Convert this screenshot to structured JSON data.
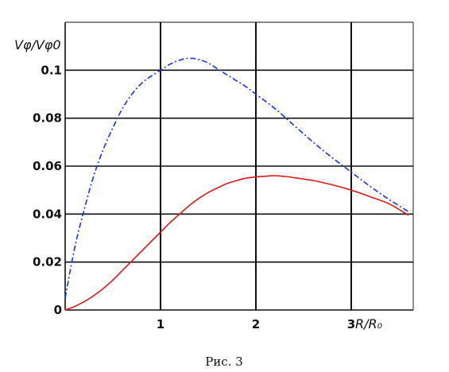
{
  "chart_data": {
    "type": "line",
    "xlabel": "R/R₀",
    "ylabel": "Vφ/Vφ0",
    "xlim": [
      0,
      3.65
    ],
    "ylim": [
      0,
      0.12
    ],
    "x_ticks": [
      {
        "value": 0,
        "label": ""
      },
      {
        "value": 1,
        "label": "1"
      },
      {
        "value": 2,
        "label": "2"
      },
      {
        "value": 3,
        "label": "3"
      }
    ],
    "y_ticks": [
      {
        "value": 0,
        "label": "0"
      },
      {
        "value": 0.02,
        "label": "0.02"
      },
      {
        "value": 0.04,
        "label": "0.04"
      },
      {
        "value": 0.06,
        "label": "0.06"
      },
      {
        "value": 0.08,
        "label": "0.08"
      },
      {
        "value": 0.1,
        "label": "0.1"
      }
    ],
    "grid": true,
    "legend": "none",
    "series": [
      {
        "color": "#1a35e0",
        "style": "dash-dot",
        "x": [
          0,
          0.1,
          0.2,
          0.3,
          0.4,
          0.5,
          0.6,
          0.7,
          0.8,
          0.9,
          1.0,
          1.1,
          1.2,
          1.3,
          1.4,
          1.5,
          1.6,
          1.7,
          1.8,
          1.9,
          2.0,
          2.2,
          2.4,
          2.6,
          2.8,
          3.0,
          3.2,
          3.4,
          3.6
        ],
        "y": [
          0.005,
          0.026,
          0.042,
          0.056,
          0.067,
          0.076,
          0.084,
          0.09,
          0.0945,
          0.0975,
          0.1,
          0.1025,
          0.1042,
          0.105,
          0.1045,
          0.103,
          0.1005,
          0.098,
          0.0955,
          0.093,
          0.09,
          0.084,
          0.077,
          0.07,
          0.0635,
          0.0575,
          0.0515,
          0.046,
          0.041
        ]
      },
      {
        "color": "#e01818",
        "style": "solid",
        "x": [
          0,
          0.1,
          0.2,
          0.3,
          0.4,
          0.5,
          0.6,
          0.7,
          0.8,
          0.9,
          1.0,
          1.1,
          1.2,
          1.3,
          1.4,
          1.5,
          1.6,
          1.7,
          1.8,
          1.9,
          2.0,
          2.1,
          2.2,
          2.3,
          2.4,
          2.6,
          2.8,
          3.0,
          3.2,
          3.4,
          3.6
        ],
        "y": [
          0,
          0.0015,
          0.0035,
          0.006,
          0.009,
          0.0125,
          0.0165,
          0.0205,
          0.0245,
          0.0285,
          0.0325,
          0.0365,
          0.04,
          0.0435,
          0.0465,
          0.049,
          0.051,
          0.0528,
          0.054,
          0.055,
          0.0555,
          0.0558,
          0.056,
          0.0557,
          0.0552,
          0.054,
          0.0522,
          0.05,
          0.0472,
          0.0442,
          0.0395
        ]
      }
    ]
  },
  "caption": "Рис. 3"
}
